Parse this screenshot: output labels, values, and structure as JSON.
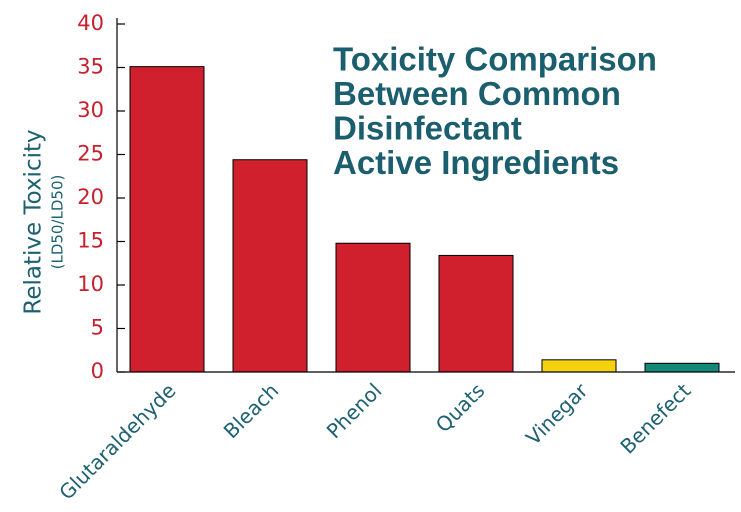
{
  "chart_data": {
    "type": "bar",
    "title": [
      "Toxicity Comparison",
      "Between Common",
      "Disinfectant",
      "Active Ingredients"
    ],
    "ylabel": "Relative Toxicity",
    "ylabel_sub": "(LD50/LD50)",
    "categories": [
      "Glutaraldehyde",
      "Bleach",
      "Phenol",
      "Quats",
      "Vinegar",
      "Benefect"
    ],
    "values": [
      35.1,
      24.4,
      14.8,
      13.4,
      1.4,
      1.0
    ],
    "colors": [
      "#d0202e",
      "#d0202e",
      "#d0202e",
      "#d0202e",
      "#f5d20f",
      "#14897a"
    ],
    "ylim": [
      0,
      40
    ],
    "yticks": [
      0,
      5,
      10,
      15,
      20,
      25,
      30,
      35,
      40
    ]
  }
}
